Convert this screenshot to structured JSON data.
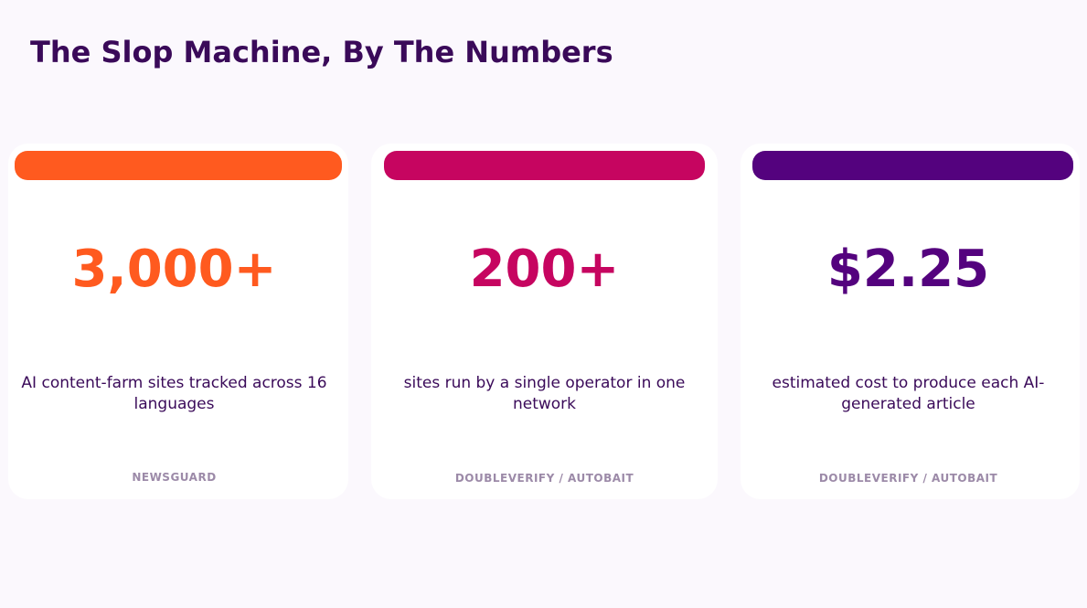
{
  "title": "The Slop Machine, By The Numbers",
  "cards": [
    {
      "value": "3,000+",
      "description": "AI content-farm sites tracked across 16 languages",
      "source": "NEWSGUARD",
      "accent_color": "#FF5A1F"
    },
    {
      "value": "200+",
      "description": "sites run by a single operator in one network",
      "source": "DOUBLEVERIFY / AUTOBAIT",
      "accent_color": "#C60560"
    },
    {
      "value": "$2.25",
      "description": "estimated cost to produce each AI-generated article",
      "source": "DOUBLEVERIFY / AUTOBAIT",
      "accent_color": "#54027E"
    }
  ],
  "colors": {
    "background": "#FBF8FD",
    "title": "#3A0A59",
    "description": "#3A0A59",
    "source": "#9C8AA8"
  }
}
